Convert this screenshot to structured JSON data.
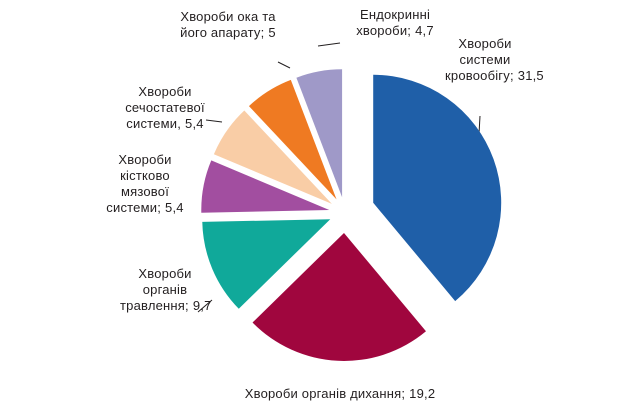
{
  "chart_data": {
    "type": "pie",
    "categories": [
      "Хвороби системи кровообігу;",
      "Хвороби органів дихання;",
      "Хвороби органів травлення;",
      "Хвороби кістково мязової системи;",
      "Хвороби сечостатевої системи,",
      "Хвороби ока та його апарату;",
      "Ендокринні хвороби;"
    ],
    "values": [
      31.5,
      19.2,
      9.7,
      5.4,
      5.4,
      5,
      4.7
    ],
    "value_labels": [
      "31,5",
      "19,2",
      "9,7",
      "5,4",
      "5,4",
      "5",
      "4,7"
    ],
    "colors": [
      "#1f5fa8",
      "#a0063e",
      "#10a99a",
      "#a24ea0",
      "#f9cda6",
      "#ef7a22",
      "#9f99c8"
    ]
  }
}
